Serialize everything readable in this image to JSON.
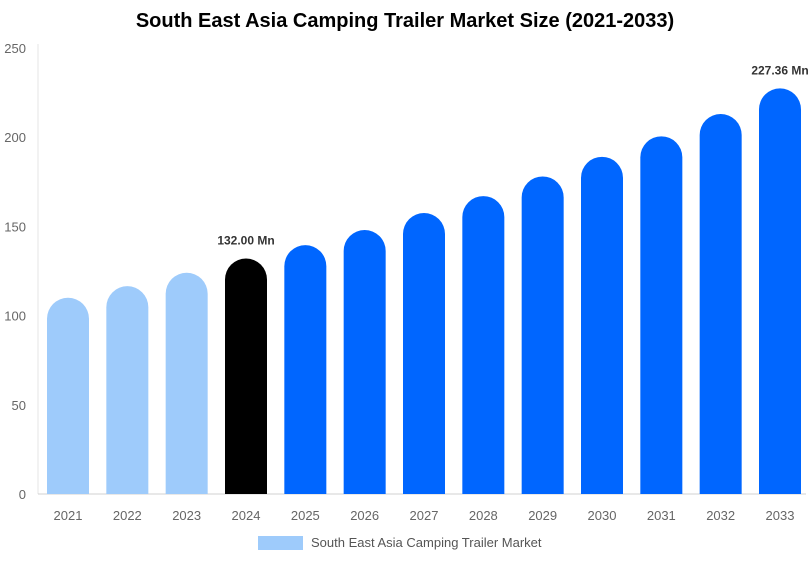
{
  "chart_data": {
    "type": "bar",
    "title": "South East Asia Camping Trailer Market Size (2021-2033)",
    "xlabel": "",
    "ylabel": "",
    "ylim": [
      0,
      250
    ],
    "yticks": [
      0,
      50,
      100,
      150,
      200,
      250
    ],
    "grid": false,
    "legend_position": "bottom",
    "categories": [
      "2021",
      "2022",
      "2023",
      "2024",
      "2025",
      "2026",
      "2027",
      "2028",
      "2029",
      "2030",
      "2031",
      "2032",
      "2033"
    ],
    "series": [
      {
        "name": "South East Asia Camping Trailer Market",
        "values": [
          110,
          116.5,
          124,
          132,
          139.5,
          148,
          157.5,
          167,
          178,
          189,
          200.5,
          213,
          227.36
        ]
      }
    ],
    "bar_colors": [
      "#9ecbfb",
      "#9ecbfb",
      "#9ecbfb",
      "#000000",
      "#0066ff",
      "#0066ff",
      "#0066ff",
      "#0066ff",
      "#0066ff",
      "#0066ff",
      "#0066ff",
      "#0066ff",
      "#0066ff"
    ],
    "legend_color": "#9ecbfb",
    "data_labels": [
      {
        "category": "2024",
        "text": "132.00 Mn"
      },
      {
        "category": "2033",
        "text": "227.36 Mn"
      }
    ]
  }
}
